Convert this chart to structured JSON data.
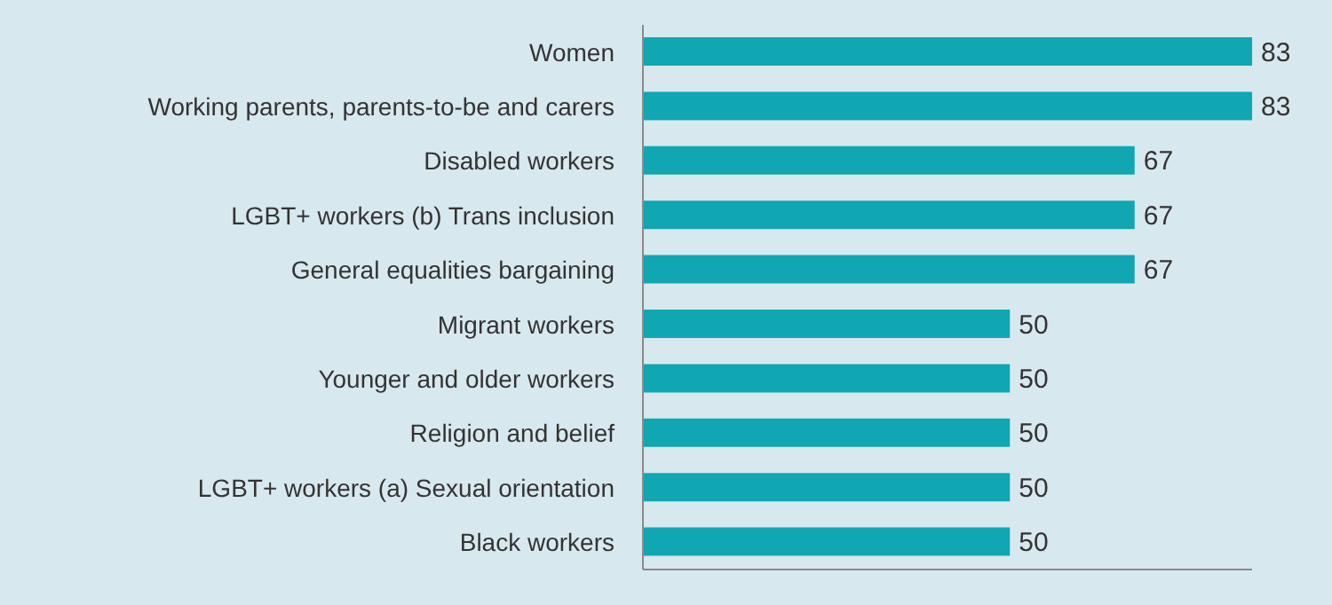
{
  "chart_data": {
    "type": "bar",
    "orientation": "horizontal",
    "categories": [
      "Women",
      "Working parents, parents-to-be and carers",
      "Disabled workers",
      "LGBT+ workers (b) Trans inclusion",
      "General equalities bargaining",
      "Migrant workers",
      "Younger and older workers",
      "Religion and belief",
      "LGBT+ workers (a) Sexual orientation",
      "Black workers"
    ],
    "values": [
      83,
      83,
      67,
      67,
      67,
      50,
      50,
      50,
      50,
      50
    ],
    "color": "#10a6b2",
    "data_labels": true
  }
}
